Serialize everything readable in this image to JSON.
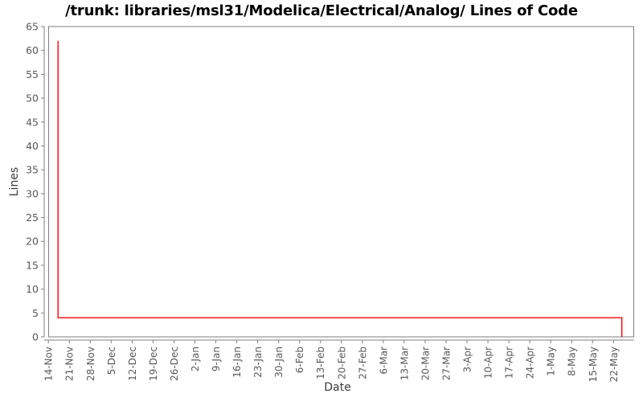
{
  "chart_data": {
    "type": "line",
    "title": "/trunk: libraries/msl31/Modelica/Electrical/Analog/ Lines of Code",
    "xlabel": "Date",
    "ylabel": "Lines",
    "ylim": [
      0,
      65
    ],
    "y_ticks": [
      0,
      5,
      10,
      15,
      20,
      25,
      30,
      35,
      40,
      45,
      50,
      55,
      60,
      65
    ],
    "x_tick_labels": [
      "14-Nov",
      "21-Nov",
      "28-Nov",
      "5-Dec",
      "12-Dec",
      "19-Dec",
      "26-Dec",
      "2-Jan",
      "9-Jan",
      "16-Jan",
      "23-Jan",
      "30-Jan",
      "6-Feb",
      "13-Feb",
      "20-Feb",
      "27-Feb",
      "6-Mar",
      "13-Mar",
      "20-Mar",
      "27-Mar",
      "3-Apr",
      "10-Apr",
      "17-Apr",
      "24-Apr",
      "1-May",
      "8-May",
      "15-May",
      "22-May"
    ],
    "x_unit": "weeks since 14-Nov tick",
    "grid": false,
    "legend_position": "none",
    "series": [
      {
        "name": "Lines of Code",
        "color": "#ff0000",
        "points": [
          {
            "x": 0.46,
            "y": 62
          },
          {
            "x": 0.46,
            "y": 4
          },
          {
            "x": 27.4,
            "y": 4
          },
          {
            "x": 27.4,
            "y": 0
          }
        ]
      }
    ],
    "colors": {
      "background": "#ffffff",
      "axis": "#7f7f7f",
      "tick_label": "#595959",
      "axis_label": "#3a3a3a",
      "title": "#000000",
      "series": "#ff0000"
    }
  }
}
